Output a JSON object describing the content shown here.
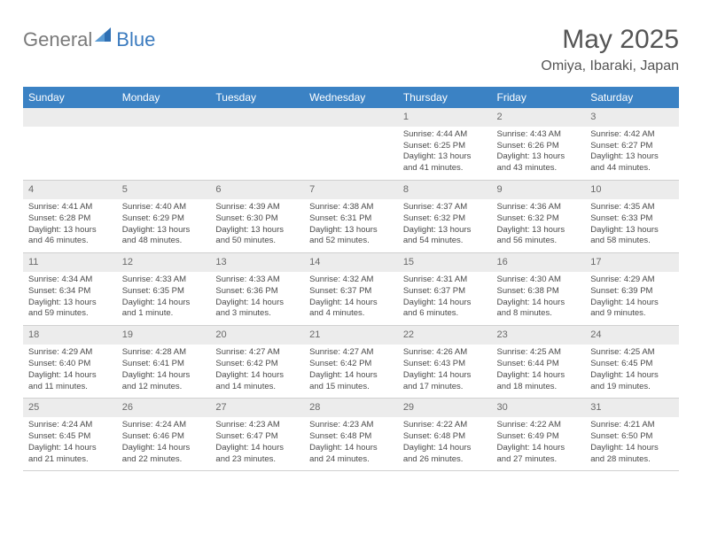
{
  "logo": {
    "general": "General",
    "blue": "Blue"
  },
  "title": "May 2025",
  "location": "Omiya, Ibaraki, Japan",
  "weekdays": [
    "Sunday",
    "Monday",
    "Tuesday",
    "Wednesday",
    "Thursday",
    "Friday",
    "Saturday"
  ],
  "colors": {
    "header_bg": "#3b82c4",
    "header_text": "#ffffff",
    "daynum_bg": "#ececec",
    "text": "#4a4a4a",
    "logo_gray": "#7a7a7a",
    "logo_blue": "#3b7bbf"
  },
  "weeks": [
    [
      {
        "day": "",
        "sunrise": "",
        "sunset": "",
        "daylight": ""
      },
      {
        "day": "",
        "sunrise": "",
        "sunset": "",
        "daylight": ""
      },
      {
        "day": "",
        "sunrise": "",
        "sunset": "",
        "daylight": ""
      },
      {
        "day": "",
        "sunrise": "",
        "sunset": "",
        "daylight": ""
      },
      {
        "day": "1",
        "sunrise": "Sunrise: 4:44 AM",
        "sunset": "Sunset: 6:25 PM",
        "daylight": "Daylight: 13 hours and 41 minutes."
      },
      {
        "day": "2",
        "sunrise": "Sunrise: 4:43 AM",
        "sunset": "Sunset: 6:26 PM",
        "daylight": "Daylight: 13 hours and 43 minutes."
      },
      {
        "day": "3",
        "sunrise": "Sunrise: 4:42 AM",
        "sunset": "Sunset: 6:27 PM",
        "daylight": "Daylight: 13 hours and 44 minutes."
      }
    ],
    [
      {
        "day": "4",
        "sunrise": "Sunrise: 4:41 AM",
        "sunset": "Sunset: 6:28 PM",
        "daylight": "Daylight: 13 hours and 46 minutes."
      },
      {
        "day": "5",
        "sunrise": "Sunrise: 4:40 AM",
        "sunset": "Sunset: 6:29 PM",
        "daylight": "Daylight: 13 hours and 48 minutes."
      },
      {
        "day": "6",
        "sunrise": "Sunrise: 4:39 AM",
        "sunset": "Sunset: 6:30 PM",
        "daylight": "Daylight: 13 hours and 50 minutes."
      },
      {
        "day": "7",
        "sunrise": "Sunrise: 4:38 AM",
        "sunset": "Sunset: 6:31 PM",
        "daylight": "Daylight: 13 hours and 52 minutes."
      },
      {
        "day": "8",
        "sunrise": "Sunrise: 4:37 AM",
        "sunset": "Sunset: 6:32 PM",
        "daylight": "Daylight: 13 hours and 54 minutes."
      },
      {
        "day": "9",
        "sunrise": "Sunrise: 4:36 AM",
        "sunset": "Sunset: 6:32 PM",
        "daylight": "Daylight: 13 hours and 56 minutes."
      },
      {
        "day": "10",
        "sunrise": "Sunrise: 4:35 AM",
        "sunset": "Sunset: 6:33 PM",
        "daylight": "Daylight: 13 hours and 58 minutes."
      }
    ],
    [
      {
        "day": "11",
        "sunrise": "Sunrise: 4:34 AM",
        "sunset": "Sunset: 6:34 PM",
        "daylight": "Daylight: 13 hours and 59 minutes."
      },
      {
        "day": "12",
        "sunrise": "Sunrise: 4:33 AM",
        "sunset": "Sunset: 6:35 PM",
        "daylight": "Daylight: 14 hours and 1 minute."
      },
      {
        "day": "13",
        "sunrise": "Sunrise: 4:33 AM",
        "sunset": "Sunset: 6:36 PM",
        "daylight": "Daylight: 14 hours and 3 minutes."
      },
      {
        "day": "14",
        "sunrise": "Sunrise: 4:32 AM",
        "sunset": "Sunset: 6:37 PM",
        "daylight": "Daylight: 14 hours and 4 minutes."
      },
      {
        "day": "15",
        "sunrise": "Sunrise: 4:31 AM",
        "sunset": "Sunset: 6:37 PM",
        "daylight": "Daylight: 14 hours and 6 minutes."
      },
      {
        "day": "16",
        "sunrise": "Sunrise: 4:30 AM",
        "sunset": "Sunset: 6:38 PM",
        "daylight": "Daylight: 14 hours and 8 minutes."
      },
      {
        "day": "17",
        "sunrise": "Sunrise: 4:29 AM",
        "sunset": "Sunset: 6:39 PM",
        "daylight": "Daylight: 14 hours and 9 minutes."
      }
    ],
    [
      {
        "day": "18",
        "sunrise": "Sunrise: 4:29 AM",
        "sunset": "Sunset: 6:40 PM",
        "daylight": "Daylight: 14 hours and 11 minutes."
      },
      {
        "day": "19",
        "sunrise": "Sunrise: 4:28 AM",
        "sunset": "Sunset: 6:41 PM",
        "daylight": "Daylight: 14 hours and 12 minutes."
      },
      {
        "day": "20",
        "sunrise": "Sunrise: 4:27 AM",
        "sunset": "Sunset: 6:42 PM",
        "daylight": "Daylight: 14 hours and 14 minutes."
      },
      {
        "day": "21",
        "sunrise": "Sunrise: 4:27 AM",
        "sunset": "Sunset: 6:42 PM",
        "daylight": "Daylight: 14 hours and 15 minutes."
      },
      {
        "day": "22",
        "sunrise": "Sunrise: 4:26 AM",
        "sunset": "Sunset: 6:43 PM",
        "daylight": "Daylight: 14 hours and 17 minutes."
      },
      {
        "day": "23",
        "sunrise": "Sunrise: 4:25 AM",
        "sunset": "Sunset: 6:44 PM",
        "daylight": "Daylight: 14 hours and 18 minutes."
      },
      {
        "day": "24",
        "sunrise": "Sunrise: 4:25 AM",
        "sunset": "Sunset: 6:45 PM",
        "daylight": "Daylight: 14 hours and 19 minutes."
      }
    ],
    [
      {
        "day": "25",
        "sunrise": "Sunrise: 4:24 AM",
        "sunset": "Sunset: 6:45 PM",
        "daylight": "Daylight: 14 hours and 21 minutes."
      },
      {
        "day": "26",
        "sunrise": "Sunrise: 4:24 AM",
        "sunset": "Sunset: 6:46 PM",
        "daylight": "Daylight: 14 hours and 22 minutes."
      },
      {
        "day": "27",
        "sunrise": "Sunrise: 4:23 AM",
        "sunset": "Sunset: 6:47 PM",
        "daylight": "Daylight: 14 hours and 23 minutes."
      },
      {
        "day": "28",
        "sunrise": "Sunrise: 4:23 AM",
        "sunset": "Sunset: 6:48 PM",
        "daylight": "Daylight: 14 hours and 24 minutes."
      },
      {
        "day": "29",
        "sunrise": "Sunrise: 4:22 AM",
        "sunset": "Sunset: 6:48 PM",
        "daylight": "Daylight: 14 hours and 26 minutes."
      },
      {
        "day": "30",
        "sunrise": "Sunrise: 4:22 AM",
        "sunset": "Sunset: 6:49 PM",
        "daylight": "Daylight: 14 hours and 27 minutes."
      },
      {
        "day": "31",
        "sunrise": "Sunrise: 4:21 AM",
        "sunset": "Sunset: 6:50 PM",
        "daylight": "Daylight: 14 hours and 28 minutes."
      }
    ]
  ]
}
